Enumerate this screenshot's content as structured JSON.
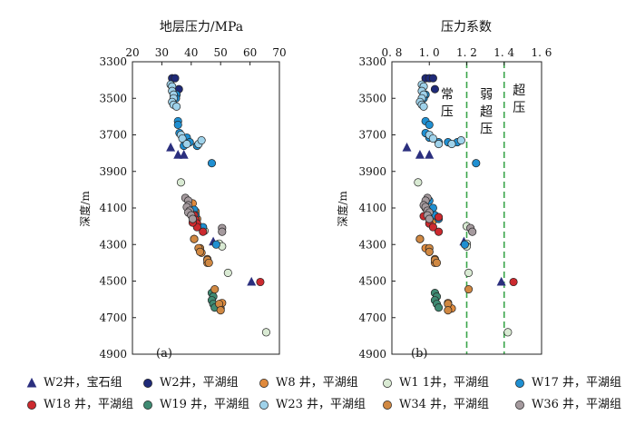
{
  "colors": {
    "W2_baoshi": "#2b2f7e",
    "W2_pinghu": "#1f2a78",
    "W8": "#e08a3c",
    "W1-1": "#d9ead3",
    "W17": "#1f8fd1",
    "W18": "#cc2a2f",
    "W19": "#3f8a72",
    "W23": "#9fd2ea",
    "W34": "#d08842",
    "W36": "#a59a9e",
    "divider": "#3aa54a"
  },
  "legend": [
    {
      "key": "W2_baoshi",
      "marker": "triangle",
      "well": "W2井，",
      "formation": "宝石组"
    },
    {
      "key": "W2_pinghu",
      "marker": "circle",
      "well": "W2井，",
      "formation": "平湖组"
    },
    {
      "key": "W8",
      "marker": "circle",
      "well": "W8 井，",
      "formation": "平湖组"
    },
    {
      "key": "W1-1",
      "marker": "circle",
      "well": "W1 1井，",
      "formation": "平湖组"
    },
    {
      "key": "W17",
      "marker": "circle",
      "well": "W17 井，",
      "formation": "平湖组"
    },
    {
      "key": "W18",
      "marker": "circle",
      "well": "W18 井，",
      "formation": "平湖组"
    },
    {
      "key": "W19",
      "marker": "circle",
      "well": "W19 井，",
      "formation": "平湖组"
    },
    {
      "key": "W23",
      "marker": "circle",
      "well": "W23 井，",
      "formation": "平湖组"
    },
    {
      "key": "W34",
      "marker": "circle",
      "well": "W34 井，",
      "formation": "平湖组"
    },
    {
      "key": "W36",
      "marker": "circle",
      "well": "W36 井，",
      "formation": "平湖组"
    }
  ],
  "chart_data": [
    {
      "type": "scatter",
      "panel_label": "(a)",
      "title": "地层压力/MPa",
      "xlabel": "地层压力/MPa",
      "ylabel": "深度/m",
      "xlim": [
        20,
        70
      ],
      "ylim": [
        3300,
        4900
      ],
      "x_ticks": [
        20,
        30,
        40,
        50,
        60,
        70
      ],
      "y_ticks": [
        3300,
        3500,
        3700,
        3900,
        4100,
        4300,
        4500,
        4700,
        4900
      ],
      "y_inverted": true,
      "series": [
        {
          "name": "W2井，宝石组",
          "key": "W2_baoshi",
          "marker": "triangle",
          "points": [
            [
              33.0,
              3770
            ],
            [
              35.5,
              3810
            ],
            [
              37.5,
              3810
            ],
            [
              47.5,
              4285
            ],
            [
              60.5,
              4505
            ]
          ]
        },
        {
          "name": "W2井，平湖组",
          "key": "W2_pinghu",
          "marker": "circle",
          "points": [
            [
              33.5,
              3390
            ],
            [
              34.5,
              3390
            ],
            [
              35.8,
              3450
            ]
          ]
        },
        {
          "name": "W8 井，平湖组",
          "key": "W8",
          "marker": "circle",
          "points": [
            [
              40.5,
              4075
            ],
            [
              41.5,
              4120
            ],
            [
              42.0,
              4160
            ],
            [
              43.0,
              4320
            ],
            [
              43.5,
              4345
            ],
            [
              41.0,
              4270
            ],
            [
              45.5,
              4380
            ],
            [
              45.5,
              4400
            ],
            [
              50.0,
              4650
            ],
            [
              50.5,
              4620
            ]
          ]
        },
        {
          "name": "W1 1井，平湖组",
          "key": "W1-1",
          "marker": "circle",
          "points": [
            [
              36.5,
              3960
            ],
            [
              44.5,
              4225
            ],
            [
              49.5,
              4295
            ],
            [
              50.5,
              4310
            ],
            [
              52.5,
              4455
            ],
            [
              65.5,
              4780
            ]
          ]
        },
        {
          "name": "W17 井，平湖组",
          "key": "W17",
          "marker": "circle",
          "points": [
            [
              35.0,
              3480
            ],
            [
              34.8,
              3500
            ],
            [
              35.5,
              3625
            ],
            [
              35.5,
              3645
            ],
            [
              36.0,
              3690
            ],
            [
              37.5,
              3760
            ],
            [
              38.5,
              3715
            ],
            [
              39.5,
              3740
            ],
            [
              42.0,
              3760
            ],
            [
              47.0,
              3855
            ],
            [
              41.0,
              4110
            ],
            [
              41.5,
              4140
            ],
            [
              44.0,
              4205
            ],
            [
              48.5,
              4300
            ]
          ]
        },
        {
          "name": "W18 井，平湖组",
          "key": "W18",
          "marker": "circle",
          "points": [
            [
              41.0,
              4140
            ],
            [
              41.5,
              4165
            ],
            [
              42.0,
              4185
            ],
            [
              42.0,
              4205
            ],
            [
              40.5,
              4180
            ],
            [
              44.0,
              4230
            ],
            [
              63.5,
              4505
            ]
          ]
        },
        {
          "name": "W19 井，平湖组",
          "key": "W19",
          "marker": "circle",
          "points": [
            [
              47.0,
              4565
            ],
            [
              47.5,
              4585
            ],
            [
              47.0,
              4605
            ],
            [
              47.5,
              4625
            ],
            [
              48.0,
              4645
            ]
          ]
        },
        {
          "name": "W23 井，平湖组",
          "key": "W23",
          "marker": "circle",
          "points": [
            [
              33.0,
              3425
            ],
            [
              33.5,
              3435
            ],
            [
              33.5,
              3460
            ],
            [
              34.0,
              3480
            ],
            [
              34.0,
              3500
            ],
            [
              33.5,
              3520
            ],
            [
              34.0,
              3535
            ],
            [
              35.0,
              3545
            ],
            [
              36.5,
              3700
            ],
            [
              37.0,
              3720
            ],
            [
              38.5,
              3750
            ],
            [
              42.5,
              3750
            ],
            [
              43.5,
              3730
            ]
          ]
        },
        {
          "name": "W34 井，平湖组",
          "key": "W34",
          "marker": "circle",
          "points": [
            [
              41.0,
              4270
            ],
            [
              42.5,
              4320
            ],
            [
              43.0,
              4340
            ],
            [
              45.5,
              4385
            ],
            [
              46.0,
              4400
            ],
            [
              48.0,
              4545
            ],
            [
              49.5,
              4625
            ],
            [
              50.0,
              4660
            ]
          ]
        },
        {
          "name": "W36 井，平湖组",
          "key": "W36",
          "marker": "circle",
          "points": [
            [
              38.0,
              4045
            ],
            [
              39.0,
              4060
            ],
            [
              39.0,
              4085
            ],
            [
              38.5,
              4095
            ],
            [
              39.5,
              4115
            ],
            [
              39.0,
              4125
            ],
            [
              40.0,
              4140
            ],
            [
              40.5,
              4160
            ],
            [
              50.5,
              4210
            ],
            [
              50.5,
              4230
            ]
          ]
        }
      ]
    },
    {
      "type": "scatter",
      "panel_label": "(b)",
      "title": "压力系数",
      "xlabel": "压力系数",
      "ylabel": "深度/m",
      "xlim": [
        0.8,
        1.6
      ],
      "ylim": [
        3300,
        4900
      ],
      "x_ticks": [
        0.8,
        1.0,
        1.2,
        1.4,
        1.6
      ],
      "x_tick_labels": [
        "0. 8",
        "1. 0",
        "1. 2",
        "1. 4",
        "1. 6"
      ],
      "y_ticks": [
        3300,
        3500,
        3700,
        3900,
        4100,
        4300,
        4500,
        4700,
        4900
      ],
      "y_inverted": true,
      "reference_lines": [
        1.2,
        1.4
      ],
      "zone_labels": [
        {
          "text": "常压",
          "x": 1.095,
          "y": 3500
        },
        {
          "text": "弱超压",
          "x": 1.305,
          "y": 3500
        },
        {
          "text": "超压",
          "x": 1.48,
          "y": 3480
        }
      ],
      "series": [
        {
          "name": "W2井，宝石组",
          "key": "W2_baoshi",
          "marker": "triangle",
          "points": [
            [
              0.88,
              3770
            ],
            [
              0.95,
              3810
            ],
            [
              1.0,
              3810
            ],
            [
              1.185,
              4285
            ],
            [
              1.385,
              4505
            ]
          ]
        },
        {
          "name": "W2井，平湖组",
          "key": "W2_pinghu",
          "marker": "circle",
          "points": [
            [
              0.98,
              3390
            ],
            [
              1.0,
              3390
            ],
            [
              1.02,
              3390
            ],
            [
              1.03,
              3450
            ]
          ]
        },
        {
          "name": "W8 井，平湖组",
          "key": "W8",
          "marker": "circle",
          "points": [
            [
              0.98,
              4100
            ],
            [
              1.0,
              4150
            ],
            [
              1.02,
              4170
            ],
            [
              0.95,
              4270
            ],
            [
              0.98,
              4320
            ],
            [
              1.0,
              4340
            ],
            [
              1.03,
              4380
            ],
            [
              1.03,
              4400
            ],
            [
              1.1,
              4620
            ],
            [
              1.12,
              4650
            ]
          ]
        },
        {
          "name": "W1 1井，平湖组",
          "key": "W1-1",
          "marker": "circle",
          "points": [
            [
              0.94,
              3960
            ],
            [
              1.2,
              4200
            ],
            [
              1.2,
              4295
            ],
            [
              1.2,
              4310
            ],
            [
              1.21,
              4455
            ],
            [
              1.42,
              4780
            ]
          ]
        },
        {
          "name": "W17 井，平湖组",
          "key": "W17",
          "marker": "circle",
          "points": [
            [
              0.98,
              3480
            ],
            [
              0.97,
              3500
            ],
            [
              0.98,
              3625
            ],
            [
              1.0,
              3645
            ],
            [
              0.98,
              3690
            ],
            [
              1.0,
              3715
            ],
            [
              1.05,
              3740
            ],
            [
              1.1,
              3740
            ],
            [
              1.15,
              3740
            ],
            [
              1.25,
              3855
            ],
            [
              1.0,
              4060
            ],
            [
              1.02,
              4100
            ],
            [
              1.03,
              4140
            ],
            [
              1.05,
              4160
            ],
            [
              1.19,
              4300
            ]
          ]
        },
        {
          "name": "W18 井，平湖组",
          "key": "W18",
          "marker": "circle",
          "points": [
            [
              0.97,
              4145
            ],
            [
              1.0,
              4160
            ],
            [
              1.0,
              4185
            ],
            [
              1.02,
              4205
            ],
            [
              1.05,
              4150
            ],
            [
              1.05,
              4230
            ],
            [
              1.45,
              4505
            ]
          ]
        },
        {
          "name": "W19 井，平湖组",
          "key": "W19",
          "marker": "circle",
          "points": [
            [
              1.03,
              4565
            ],
            [
              1.04,
              4585
            ],
            [
              1.03,
              4605
            ],
            [
              1.04,
              4625
            ],
            [
              1.05,
              4645
            ]
          ]
        },
        {
          "name": "W23 井，平湖组",
          "key": "W23",
          "marker": "circle",
          "points": [
            [
              0.96,
              3425
            ],
            [
              0.97,
              3435
            ],
            [
              0.96,
              3460
            ],
            [
              0.97,
              3480
            ],
            [
              0.96,
              3500
            ],
            [
              0.95,
              3520
            ],
            [
              0.96,
              3535
            ],
            [
              0.97,
              3545
            ],
            [
              1.0,
              3700
            ],
            [
              1.02,
              3720
            ],
            [
              1.05,
              3750
            ],
            [
              1.12,
              3750
            ],
            [
              1.17,
              3730
            ]
          ]
        },
        {
          "name": "W34 井，平湖组",
          "key": "W34",
          "marker": "circle",
          "points": [
            [
              0.95,
              4270
            ],
            [
              1.0,
              4320
            ],
            [
              1.0,
              4340
            ],
            [
              1.03,
              4385
            ],
            [
              1.04,
              4400
            ],
            [
              1.21,
              4545
            ],
            [
              1.1,
              4625
            ],
            [
              1.1,
              4660
            ]
          ]
        },
        {
          "name": "W36 井，平湖组",
          "key": "W36",
          "marker": "circle",
          "points": [
            [
              0.99,
              4045
            ],
            [
              0.98,
              4060
            ],
            [
              0.97,
              4085
            ],
            [
              0.98,
              4095
            ],
            [
              0.99,
              4115
            ],
            [
              1.0,
              4125
            ],
            [
              0.99,
              4140
            ],
            [
              1.0,
              4160
            ],
            [
              1.22,
              4210
            ],
            [
              1.23,
              4230
            ]
          ]
        }
      ]
    }
  ]
}
